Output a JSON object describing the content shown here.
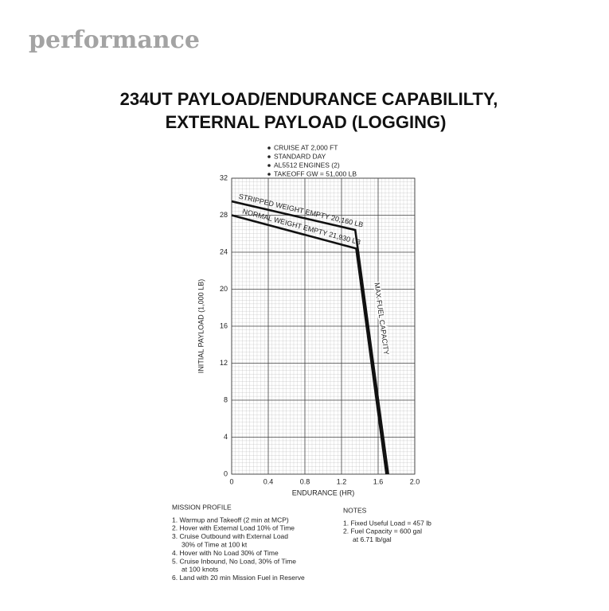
{
  "header": "performance",
  "chart_data": {
    "type": "line",
    "title_lines": [
      "234UT PAYLOAD/ENDURANCE CAPABILILTY,",
      "EXTERNAL PAYLOAD (LOGGING)"
    ],
    "conditions": [
      "CRUISE AT 2,000 FT",
      "STANDARD DAY",
      "AL5512 ENGINES (2)",
      "TAKEOFF GW = 51,000 LB"
    ],
    "xlabel": "ENDURANCE (HR)",
    "ylabel": "INITIAL PAYLOAD (1,000 LB)",
    "xlim": [
      0,
      2
    ],
    "xticks": [
      0,
      0.4,
      0.8,
      1.2,
      1.6,
      {
        "value": 2,
        "label": "2.0"
      }
    ],
    "ylim": [
      0,
      32
    ],
    "yticks": [
      0,
      4,
      8,
      12,
      16,
      20,
      24,
      28,
      32
    ],
    "grid": true,
    "series": [
      {
        "name": "STRIPPED WEIGHT EMPTY 20,160 LB",
        "color": "#111111",
        "x": [
          0,
          1.35,
          1.71
        ],
        "values": [
          29.5,
          26.4,
          0
        ]
      },
      {
        "name": "NORMAL WEIGHT EMPTY 21,930 LB",
        "color": "#111111",
        "x": [
          0,
          1.36,
          1.69
        ],
        "values": [
          28.0,
          24.4,
          0
        ]
      }
    ],
    "annotations": [
      "MAX FUEL CAPACITY"
    ]
  },
  "mission_profile": {
    "title": "MISSION PROFILE",
    "items": [
      [
        "1. Warmup and Takeoff (2 min at MCP)"
      ],
      [
        "2. Hover with External Load 10% of Time"
      ],
      [
        "3. Cruise Outbound with External Load",
        "30% of Time at 100 kt"
      ],
      [
        "4. Hover with No Load 30% of Time"
      ],
      [
        "5. Cruise Inbound, No Load, 30% of Time",
        "at 100 knots"
      ],
      [
        "6. Land with 20 min Mission Fuel in Reserve"
      ]
    ]
  },
  "notes": {
    "title": "NOTES",
    "items": [
      [
        "1. Fixed Useful Load = 457 lb"
      ],
      [
        "2. Fuel Capacity = 600 gal",
        "at 6.71 lb/gal"
      ]
    ]
  }
}
